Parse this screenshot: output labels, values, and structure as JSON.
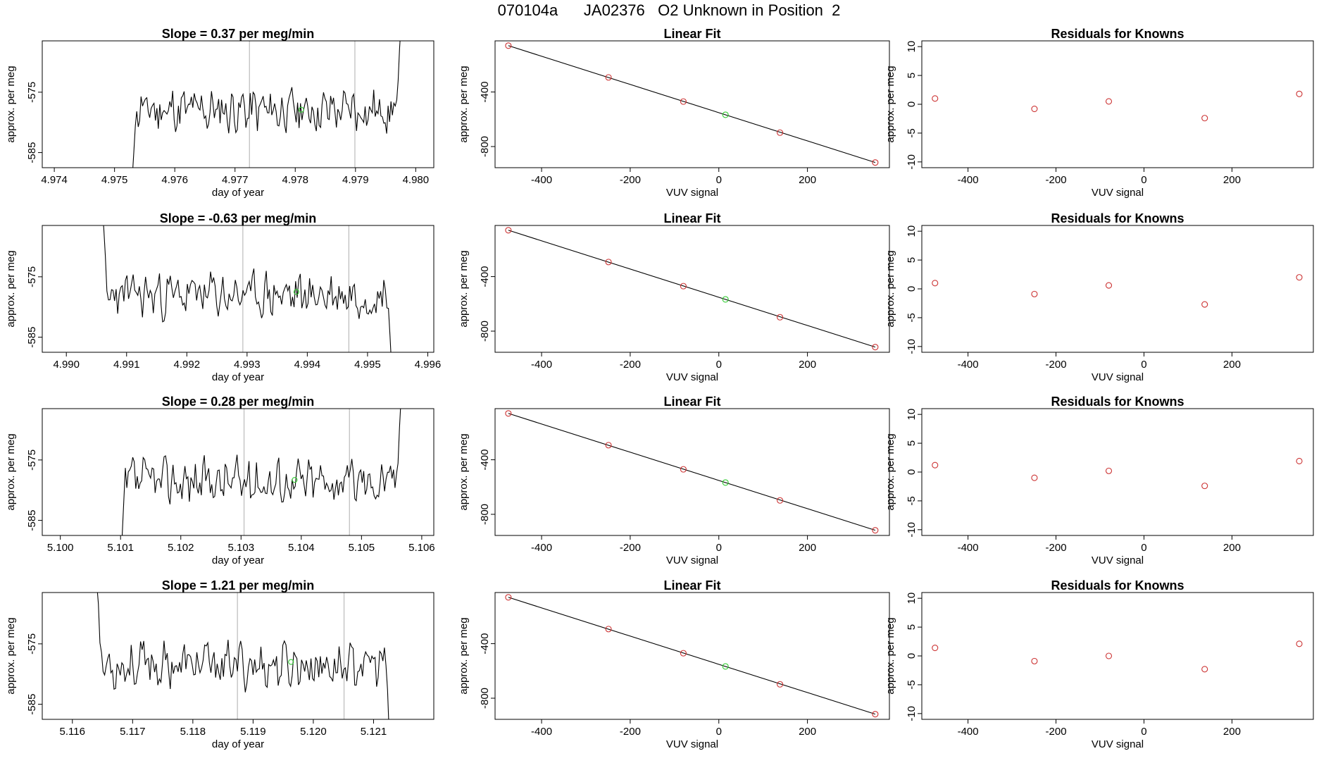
{
  "figure": {
    "title": "070104a      JA02376   O2 Unknown in Position  2"
  },
  "chart_data": [
    {
      "type": "line",
      "title": "Slope =  0.37  per meg/min",
      "xlabel": "day of year",
      "ylabel": "approx. per meg",
      "xlim": [
        4.9738,
        4.9803
      ],
      "ylim": [
        -587.5,
        -566.5
      ],
      "xticks": [
        4.974,
        4.975,
        4.976,
        4.977,
        4.978,
        4.979,
        4.98
      ],
      "xtick_labels": [
        "4.974",
        "4.975",
        "4.976",
        "4.977",
        "4.978",
        "4.979",
        "4.980"
      ],
      "yticks": [
        -575,
        -585
      ],
      "ytick_labels": [
        "-575",
        "-585"
      ],
      "vlines": [
        4.97724,
        4.97899
      ],
      "trace_start": 4.97525,
      "trace_end": 4.97978,
      "trace_seed": 11,
      "trace_mean": -578,
      "trace_start_value": -600,
      "trace_end_value": -560,
      "highlight": {
        "x": 4.9781,
        "y": -577.9
      }
    },
    {
      "type": "scatter",
      "title": "Linear Fit",
      "xlabel": "VUV signal",
      "ylabel": "approx. per meg",
      "xlim": [
        -505,
        385
      ],
      "ylim": [
        -955,
        -25
      ],
      "xticks": [
        -400,
        -200,
        0,
        200
      ],
      "xtick_labels": [
        "-400",
        "-200",
        "0",
        "200"
      ],
      "yticks": [
        -400,
        -800
      ],
      "ytick_labels": [
        "-400",
        "-800"
      ],
      "fit_line": [
        [
          -475,
          -60
        ],
        [
          353,
          -917
        ]
      ],
      "known_points": {
        "x": [
          -475,
          -249,
          -80,
          138,
          353
        ],
        "y": [
          -60,
          -293,
          -470,
          -698,
          -917
        ]
      },
      "unknown_points": {
        "x": [
          15
        ],
        "y": [
          -567
        ]
      }
    },
    {
      "type": "scatter",
      "title": "Residuals for Knowns",
      "xlabel": "VUV signal",
      "ylabel": "approx. per meg",
      "xlim": [
        -505,
        385
      ],
      "ylim": [
        -11,
        11
      ],
      "xticks": [
        -400,
        -200,
        0,
        200
      ],
      "xtick_labels": [
        "-400",
        "-200",
        "0",
        "200"
      ],
      "yticks": [
        10,
        5,
        0,
        -5,
        -10
      ],
      "ytick_labels": [
        "10",
        "5",
        "0",
        "-5",
        "-10"
      ],
      "points": {
        "x": [
          -475,
          -249,
          -80,
          138,
          353
        ],
        "y": [
          1.0,
          -0.8,
          0.5,
          -2.4,
          1.8
        ]
      }
    },
    {
      "type": "line",
      "title": "Slope =  -0.63  per meg/min",
      "xlabel": "day of year",
      "ylabel": "approx. per meg",
      "xlim": [
        4.9896,
        4.9961
      ],
      "ylim": [
        -587.5,
        -566.5
      ],
      "xticks": [
        4.99,
        4.991,
        4.992,
        4.993,
        4.994,
        4.995,
        4.996
      ],
      "xtick_labels": [
        "4.990",
        "4.991",
        "4.992",
        "4.993",
        "4.994",
        "4.995",
        "4.996"
      ],
      "yticks": [
        -575,
        -585
      ],
      "ytick_labels": [
        "-575",
        "-585"
      ],
      "vlines": [
        4.99293,
        4.99469
      ],
      "trace_start": 4.99057,
      "trace_end": 4.99545,
      "trace_seed": 23,
      "trace_mean": -578,
      "trace_start_value": -560,
      "trace_end_value": -600,
      "highlight": {
        "x": 4.99382,
        "y": -577.5
      }
    },
    {
      "type": "scatter",
      "title": "Linear Fit",
      "xlabel": "VUV signal",
      "ylabel": "approx. per meg",
      "xlim": [
        -505,
        385
      ],
      "ylim": [
        -955,
        -25
      ],
      "xticks": [
        -400,
        -200,
        0,
        200
      ],
      "xtick_labels": [
        "-400",
        "-200",
        "0",
        "200"
      ],
      "yticks": [
        -400,
        -800
      ],
      "ytick_labels": [
        "-400",
        "-800"
      ],
      "fit_line": [
        [
          -475,
          -60
        ],
        [
          353,
          -917
        ]
      ],
      "known_points": {
        "x": [
          -475,
          -249,
          -80,
          138,
          353
        ],
        "y": [
          -60,
          -293,
          -470,
          -698,
          -917
        ]
      },
      "unknown_points": {
        "x": [
          15
        ],
        "y": [
          -567
        ]
      }
    },
    {
      "type": "scatter",
      "title": "Residuals for Knowns",
      "xlabel": "VUV signal",
      "ylabel": "approx. per meg",
      "xlim": [
        -505,
        385
      ],
      "ylim": [
        -11,
        11
      ],
      "xticks": [
        -400,
        -200,
        0,
        200
      ],
      "xtick_labels": [
        "-400",
        "-200",
        "0",
        "200"
      ],
      "yticks": [
        10,
        5,
        0,
        -5,
        -10
      ],
      "ytick_labels": [
        "10",
        "5",
        "0",
        "-5",
        "-10"
      ],
      "points": {
        "x": [
          -475,
          -249,
          -80,
          138,
          353
        ],
        "y": [
          1.0,
          -0.9,
          0.6,
          -2.7,
          2.0
        ]
      }
    },
    {
      "type": "line",
      "title": "Slope =  0.28  per meg/min",
      "xlabel": "day of year",
      "ylabel": "approx. per meg",
      "xlim": [
        5.0997,
        5.1062
      ],
      "ylim": [
        -587.5,
        -566.5
      ],
      "xticks": [
        5.1,
        5.101,
        5.102,
        5.103,
        5.104,
        5.105,
        5.106
      ],
      "xtick_labels": [
        "5.100",
        "5.101",
        "5.102",
        "5.103",
        "5.104",
        "5.105",
        "5.106"
      ],
      "yticks": [
        -575,
        -585
      ],
      "ytick_labels": [
        "-575",
        "-585"
      ],
      "vlines": [
        5.10305,
        5.1048
      ],
      "trace_start": 5.10098,
      "trace_end": 5.10568,
      "trace_seed": 37,
      "trace_mean": -578.5,
      "trace_start_value": -600,
      "trace_end_value": -560,
      "highlight": {
        "x": 5.10389,
        "y": -578.3
      }
    },
    {
      "type": "scatter",
      "title": "Linear Fit",
      "xlabel": "VUV signal",
      "ylabel": "approx. per meg",
      "xlim": [
        -505,
        385
      ],
      "ylim": [
        -955,
        -25
      ],
      "xticks": [
        -400,
        -200,
        0,
        200
      ],
      "xtick_labels": [
        "-400",
        "-200",
        "0",
        "200"
      ],
      "yticks": [
        -400,
        -800
      ],
      "ytick_labels": [
        "-400",
        "-800"
      ],
      "fit_line": [
        [
          -475,
          -60
        ],
        [
          353,
          -917
        ]
      ],
      "known_points": {
        "x": [
          -475,
          -249,
          -80,
          138,
          353
        ],
        "y": [
          -60,
          -293,
          -470,
          -698,
          -917
        ]
      },
      "unknown_points": {
        "x": [
          15
        ],
        "y": [
          -567
        ]
      }
    },
    {
      "type": "scatter",
      "title": "Residuals for Knowns",
      "xlabel": "VUV signal",
      "ylabel": "approx. per meg",
      "xlim": [
        -505,
        385
      ],
      "ylim": [
        -11,
        11
      ],
      "xticks": [
        -400,
        -200,
        0,
        200
      ],
      "xtick_labels": [
        "-400",
        "-200",
        "0",
        "200"
      ],
      "yticks": [
        10,
        5,
        0,
        -5,
        -10
      ],
      "ytick_labels": [
        "10",
        "5",
        "0",
        "-5",
        "-10"
      ],
      "points": {
        "x": [
          -475,
          -249,
          -80,
          138,
          353
        ],
        "y": [
          1.2,
          -1.0,
          0.2,
          -2.4,
          1.9
        ]
      }
    },
    {
      "type": "line",
      "title": "Slope =  1.21  per meg/min",
      "xlabel": "day of year",
      "ylabel": "approx. per meg",
      "xlim": [
        5.1155,
        5.122
      ],
      "ylim": [
        -587.5,
        -566.5
      ],
      "xticks": [
        5.116,
        5.117,
        5.118,
        5.119,
        5.12,
        5.121
      ],
      "xtick_labels": [
        "5.116",
        "5.117",
        "5.118",
        "5.119",
        "5.120",
        "5.121"
      ],
      "yticks": [
        -575,
        -585
      ],
      "ytick_labels": [
        "-575",
        "-585"
      ],
      "vlines": [
        5.11874,
        5.12051
      ],
      "trace_start": 5.11638,
      "trace_end": 5.12131,
      "trace_seed": 53,
      "trace_mean": -578.5,
      "trace_start_value": -560,
      "trace_end_value": -600,
      "highlight": {
        "x": 5.11963,
        "y": -578.0
      }
    },
    {
      "type": "scatter",
      "title": "Linear Fit",
      "xlabel": "VUV signal",
      "ylabel": "approx. per meg",
      "xlim": [
        -505,
        385
      ],
      "ylim": [
        -955,
        -25
      ],
      "xticks": [
        -400,
        -200,
        0,
        200
      ],
      "xtick_labels": [
        "-400",
        "-200",
        "0",
        "200"
      ],
      "yticks": [
        -400,
        -800
      ],
      "ytick_labels": [
        "-400",
        "-800"
      ],
      "fit_line": [
        [
          -475,
          -60
        ],
        [
          353,
          -917
        ]
      ],
      "known_points": {
        "x": [
          -475,
          -249,
          -80,
          138,
          353
        ],
        "y": [
          -60,
          -293,
          -470,
          -698,
          -917
        ]
      },
      "unknown_points": {
        "x": [
          15
        ],
        "y": [
          -567
        ]
      }
    },
    {
      "type": "scatter",
      "title": "Residuals for Knowns",
      "xlabel": "VUV signal",
      "ylabel": "approx. per meg",
      "xlim": [
        -505,
        385
      ],
      "ylim": [
        -11,
        11
      ],
      "xticks": [
        -400,
        -200,
        0,
        200
      ],
      "xtick_labels": [
        "-400",
        "-200",
        "0",
        "200"
      ],
      "yticks": [
        10,
        5,
        0,
        -5,
        -10
      ],
      "ytick_labels": [
        "10",
        "5",
        "0",
        "-5",
        "-10"
      ],
      "points": {
        "x": [
          -475,
          -249,
          -80,
          138,
          353
        ],
        "y": [
          1.4,
          -0.9,
          0.0,
          -2.3,
          2.1
        ]
      }
    }
  ],
  "colors": {
    "line": "#000000",
    "known_marker": "#cc3333",
    "unknown_marker": "#33cc33",
    "vline": "#bbbbbb"
  }
}
